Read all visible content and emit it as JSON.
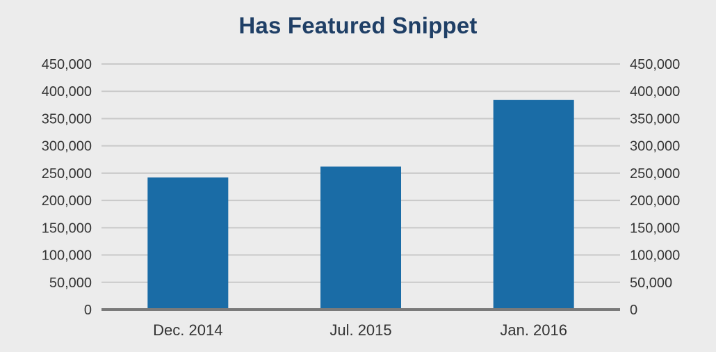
{
  "chart_data": {
    "type": "bar",
    "title": "Has Featured Snippet",
    "categories": [
      "Dec. 2014",
      "Jul. 2015",
      "Jan. 2016"
    ],
    "values": [
      242000,
      262000,
      384000
    ],
    "ylim": [
      0,
      450000
    ],
    "yticks": [
      0,
      50000,
      100000,
      150000,
      200000,
      250000,
      300000,
      350000,
      400000,
      450000
    ],
    "ytick_labels": [
      "0",
      "50,000",
      "100,000",
      "150,000",
      "200,000",
      "250,000",
      "300,000",
      "350,000",
      "400,000",
      "450,000"
    ],
    "secondary_y_axis": true,
    "grid": true,
    "xlabel": "",
    "ylabel": "",
    "bar_color": "#1a6ca6",
    "grid_color": "#c9c9c9",
    "baseline_color": "#7a7a7a",
    "title_color": "#1f3f66",
    "background_color": "#ececec"
  }
}
